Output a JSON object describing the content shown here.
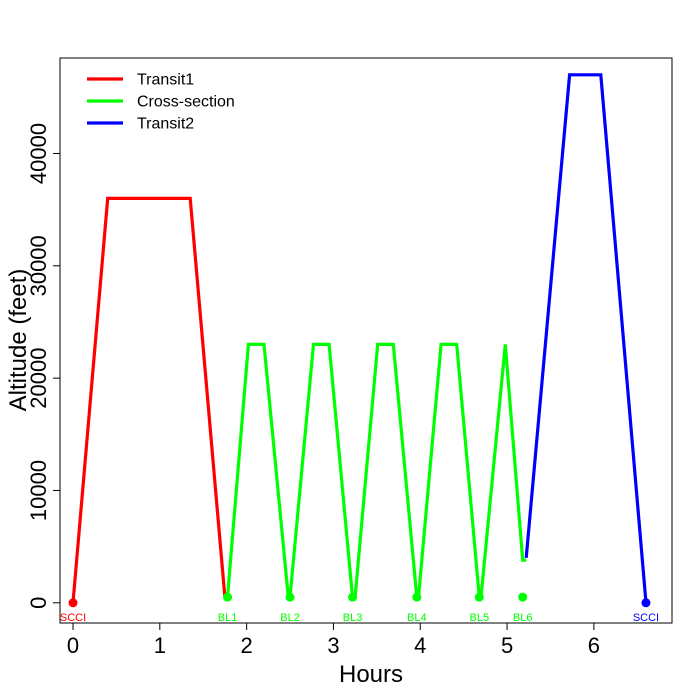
{
  "chart_data": {
    "type": "line",
    "title": "",
    "xlabel": "Hours",
    "ylabel": "Altitude (feet)",
    "xlim": [
      -0.15,
      6.9
    ],
    "ylim": [
      -1800,
      48500
    ],
    "x_ticks": [
      0,
      1,
      2,
      3,
      4,
      5,
      6
    ],
    "y_ticks": [
      0,
      10000,
      20000,
      30000,
      40000
    ],
    "legend_position": "top-left",
    "series": [
      {
        "name": "Transit1",
        "color": "#ff0000",
        "points": [
          [
            0,
            0
          ],
          [
            0.4,
            36000
          ],
          [
            1.35,
            36000
          ],
          [
            1.75,
            500
          ]
        ]
      },
      {
        "name": "Cross-section",
        "color": "#00ff00",
        "points": [
          [
            1.75,
            500
          ],
          [
            1.78,
            500
          ],
          [
            2.02,
            23000
          ],
          [
            2.2,
            23000
          ],
          [
            2.48,
            500
          ],
          [
            2.5,
            500
          ],
          [
            2.77,
            23000
          ],
          [
            2.95,
            23000
          ],
          [
            3.22,
            500
          ],
          [
            3.25,
            500
          ],
          [
            3.51,
            23000
          ],
          [
            3.69,
            23000
          ],
          [
            3.96,
            500
          ],
          [
            3.98,
            500
          ],
          [
            4.24,
            23000
          ],
          [
            4.42,
            23000
          ],
          [
            4.68,
            500
          ],
          [
            4.7,
            500
          ],
          [
            4.98,
            23000
          ],
          [
            5.18,
            3800
          ],
          [
            5.22,
            3800
          ]
        ]
      },
      {
        "name": "Transit2",
        "color": "#0000ff",
        "points": [
          [
            5.22,
            4000
          ],
          [
            5.72,
            47000
          ],
          [
            6.08,
            47000
          ],
          [
            6.6,
            0
          ]
        ]
      }
    ],
    "annotations": [
      {
        "label": "SCCI",
        "x": 0,
        "y": 0,
        "color": "#ff0000"
      },
      {
        "label": "BL1",
        "x": 1.78,
        "y": 500,
        "color": "#00ff00"
      },
      {
        "label": "BL2",
        "x": 2.5,
        "y": 500,
        "color": "#00ff00"
      },
      {
        "label": "BL3",
        "x": 3.22,
        "y": 500,
        "color": "#00ff00"
      },
      {
        "label": "BL4",
        "x": 3.96,
        "y": 500,
        "color": "#00ff00"
      },
      {
        "label": "BL5",
        "x": 4.68,
        "y": 500,
        "color": "#00ff00"
      },
      {
        "label": "BL6",
        "x": 5.18,
        "y": 500,
        "color": "#00ff00"
      },
      {
        "label": "SCCI",
        "x": 6.6,
        "y": 0,
        "color": "#0000ff"
      }
    ]
  }
}
